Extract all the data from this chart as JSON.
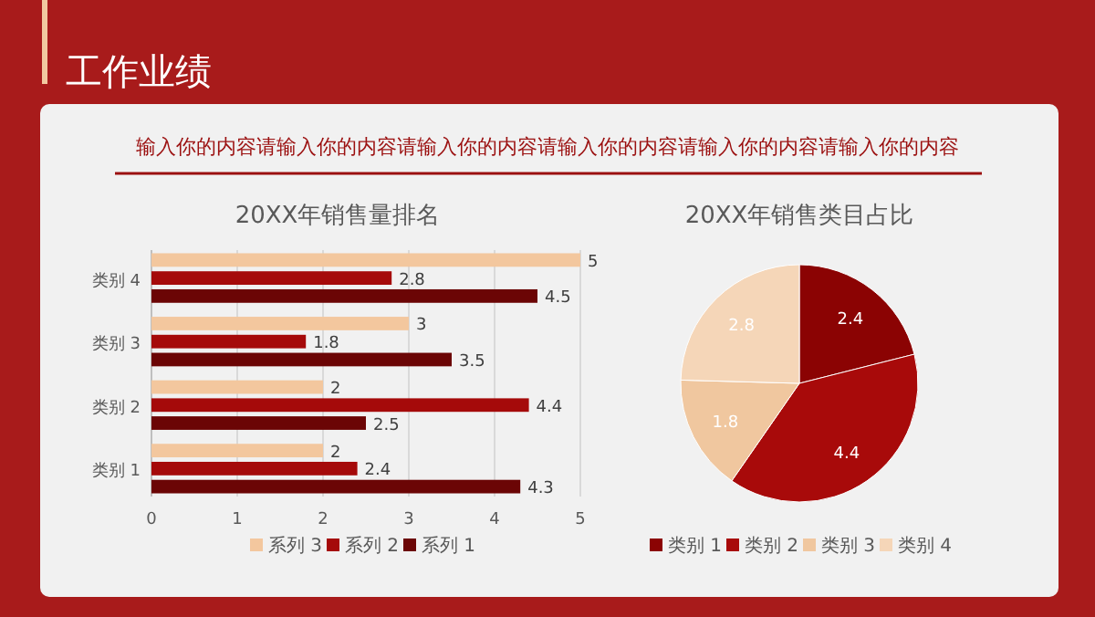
{
  "chart_data": [
    {
      "type": "other",
      "title": "工作业绩",
      "subtitle": "输入你的内容请输入你的内容请输入你的内容请输入你的内容请输入你的内容请输入你的内容"
    },
    {
      "type": "bar",
      "orientation": "horizontal",
      "title": "20XX年销售量排名",
      "categories": [
        "类别 4",
        "类别 3",
        "类别 2",
        "类别 1"
      ],
      "series": [
        {
          "name": "系列 3",
          "color": "#f3c79e",
          "values": [
            5,
            3,
            2,
            2
          ]
        },
        {
          "name": "系列 2",
          "color": "#a50a0a",
          "values": [
            2.8,
            1.8,
            4.4,
            2.4
          ]
        },
        {
          "name": "系列 1",
          "color": "#6b0505",
          "values": [
            4.5,
            3.5,
            2.5,
            4.3
          ]
        }
      ],
      "xlim": [
        0,
        5
      ],
      "xticks": [
        0,
        1,
        2,
        3,
        4,
        5
      ],
      "grid": "x",
      "data_labels": true,
      "legend": "bottom"
    },
    {
      "type": "pie",
      "title": "20XX年销售类目占比",
      "categories": [
        "类别 1",
        "类别 2",
        "类别 3",
        "类别 4"
      ],
      "values": [
        2.4,
        4.4,
        1.8,
        2.8
      ],
      "colors": [
        "#8b0303",
        "#a80a0a",
        "#f0c79f",
        "#f5d6b8"
      ],
      "data_labels": true,
      "legend": "bottom"
    }
  ]
}
